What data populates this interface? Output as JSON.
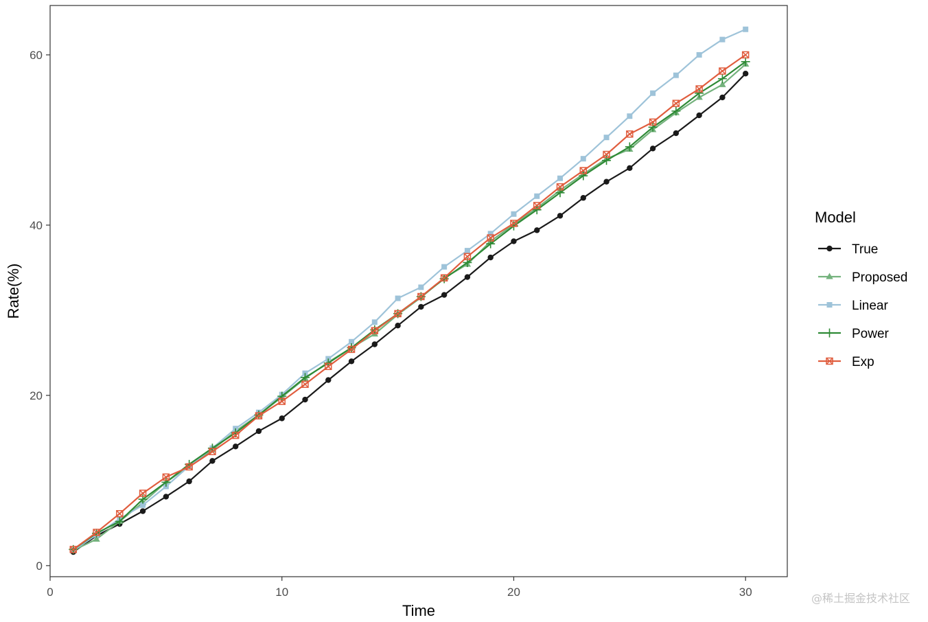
{
  "chart_data": {
    "type": "line",
    "xlabel": "Time",
    "ylabel": "Rate(%)",
    "xlim": [
      0,
      31.8
    ],
    "ylim": [
      -1.3,
      65.8
    ],
    "xticks": [
      0,
      10,
      20,
      30
    ],
    "yticks": [
      0,
      20,
      40,
      60
    ],
    "grid": false,
    "legend": {
      "title": "Model",
      "position": "right"
    },
    "x": [
      1,
      2,
      3,
      4,
      5,
      6,
      7,
      8,
      9,
      10,
      11,
      12,
      13,
      14,
      15,
      16,
      17,
      18,
      19,
      20,
      21,
      22,
      23,
      24,
      25,
      26,
      27,
      28,
      29,
      30
    ],
    "series": [
      {
        "name": "True",
        "color": "#1a1a1a",
        "marker": "circle",
        "values": [
          1.6,
          3.5,
          4.9,
          6.4,
          8.1,
          9.9,
          12.3,
          14.0,
          15.8,
          17.3,
          19.5,
          21.8,
          24.0,
          26.0,
          28.2,
          30.4,
          31.8,
          33.9,
          36.2,
          38.1,
          39.4,
          41.1,
          43.2,
          45.1,
          46.7,
          49.0,
          50.8,
          52.9,
          55.0,
          57.8
        ]
      },
      {
        "name": "Proposed",
        "color": "#74b27d",
        "marker": "triangle",
        "values": [
          1.8,
          3.1,
          5.2,
          7.4,
          9.8,
          11.7,
          13.6,
          15.8,
          17.7,
          19.8,
          22.0,
          23.9,
          25.6,
          27.2,
          29.5,
          31.5,
          33.8,
          35.4,
          38.1,
          40.1,
          42.0,
          44.1,
          46.0,
          47.8,
          48.9,
          51.2,
          53.2,
          55.0,
          56.5,
          58.9
        ]
      },
      {
        "name": "Linear",
        "color": "#9ec3d9",
        "marker": "square",
        "values": [
          1.8,
          3.6,
          5.5,
          7.1,
          9.3,
          11.7,
          13.8,
          16.1,
          18.0,
          20.1,
          22.6,
          24.3,
          26.3,
          28.6,
          31.4,
          32.7,
          35.1,
          37.0,
          39.0,
          41.3,
          43.4,
          45.5,
          47.8,
          50.3,
          52.8,
          55.5,
          57.6,
          60.0,
          61.8,
          63.0
        ]
      },
      {
        "name": "Power",
        "color": "#2e8a35",
        "marker": "plus",
        "values": [
          1.9,
          3.8,
          5.2,
          7.8,
          9.8,
          11.9,
          13.8,
          15.6,
          17.7,
          19.9,
          22.1,
          23.8,
          25.6,
          27.7,
          29.6,
          31.6,
          33.7,
          35.6,
          37.8,
          39.9,
          41.8,
          43.8,
          45.8,
          47.6,
          49.2,
          51.5,
          53.4,
          55.5,
          57.2,
          59.2
        ]
      },
      {
        "name": "Exp",
        "color": "#e05d3e",
        "marker": "square-cross",
        "values": [
          1.9,
          3.9,
          6.1,
          8.5,
          10.4,
          11.6,
          13.4,
          15.3,
          17.6,
          19.3,
          21.3,
          23.4,
          25.4,
          27.6,
          29.6,
          31.6,
          33.8,
          36.3,
          38.5,
          40.2,
          42.3,
          44.5,
          46.4,
          48.3,
          50.7,
          52.1,
          54.3,
          56.0,
          58.1,
          60.0
        ]
      }
    ]
  },
  "watermark": "@稀土掘金技术社区"
}
